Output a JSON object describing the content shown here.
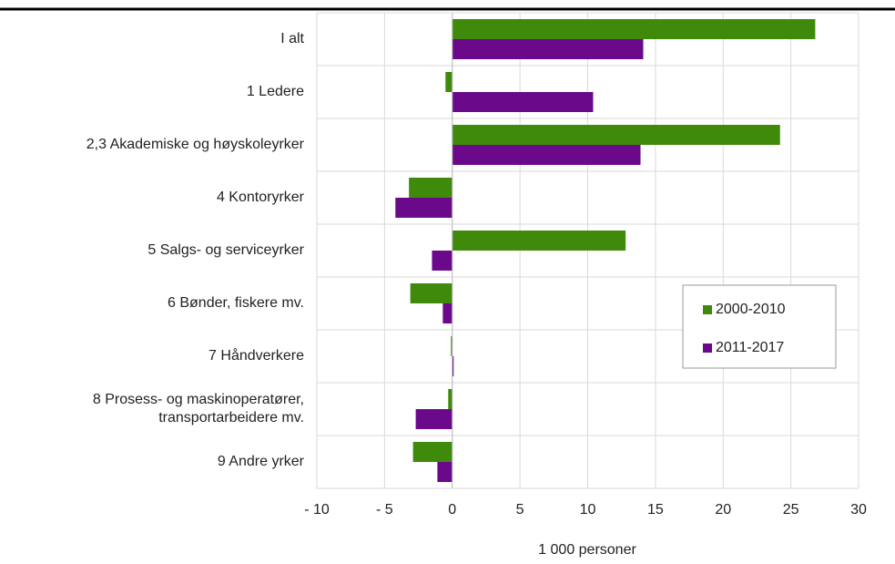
{
  "chart_data": {
    "type": "hbar",
    "categories": [
      "I alt",
      "1 Ledere",
      "2,3 Akademiske og høyskoleyrker",
      "4 Kontoryrker",
      "5 Salgs- og serviceyrker",
      "6 Bønder, fiskere mv.",
      "7 Håndverkere",
      "8 Prosess- og maskinoperatører,\ntransportarbeidere mv.",
      "9 Andre yrker"
    ],
    "series": [
      {
        "name": "2000-2010",
        "color": "#3f8a0a",
        "values": [
          26.8,
          -0.5,
          24.2,
          -3.2,
          12.8,
          -3.1,
          -0.1,
          -0.3,
          -2.9
        ]
      },
      {
        "name": "2011-2017",
        "color": "#6a0a8a",
        "values": [
          14.1,
          10.4,
          13.9,
          -4.2,
          -1.5,
          -0.7,
          0,
          -2.7,
          -1.1
        ]
      }
    ],
    "xlabel": "1 000 personer",
    "xlim": [
      -10,
      30
    ],
    "xticks": [
      {
        "value": -10,
        "label": "- 10"
      },
      {
        "value": -5,
        "label": "- 5"
      },
      0,
      5,
      10,
      15,
      20,
      25,
      30
    ],
    "grid": true,
    "legend": "right"
  }
}
